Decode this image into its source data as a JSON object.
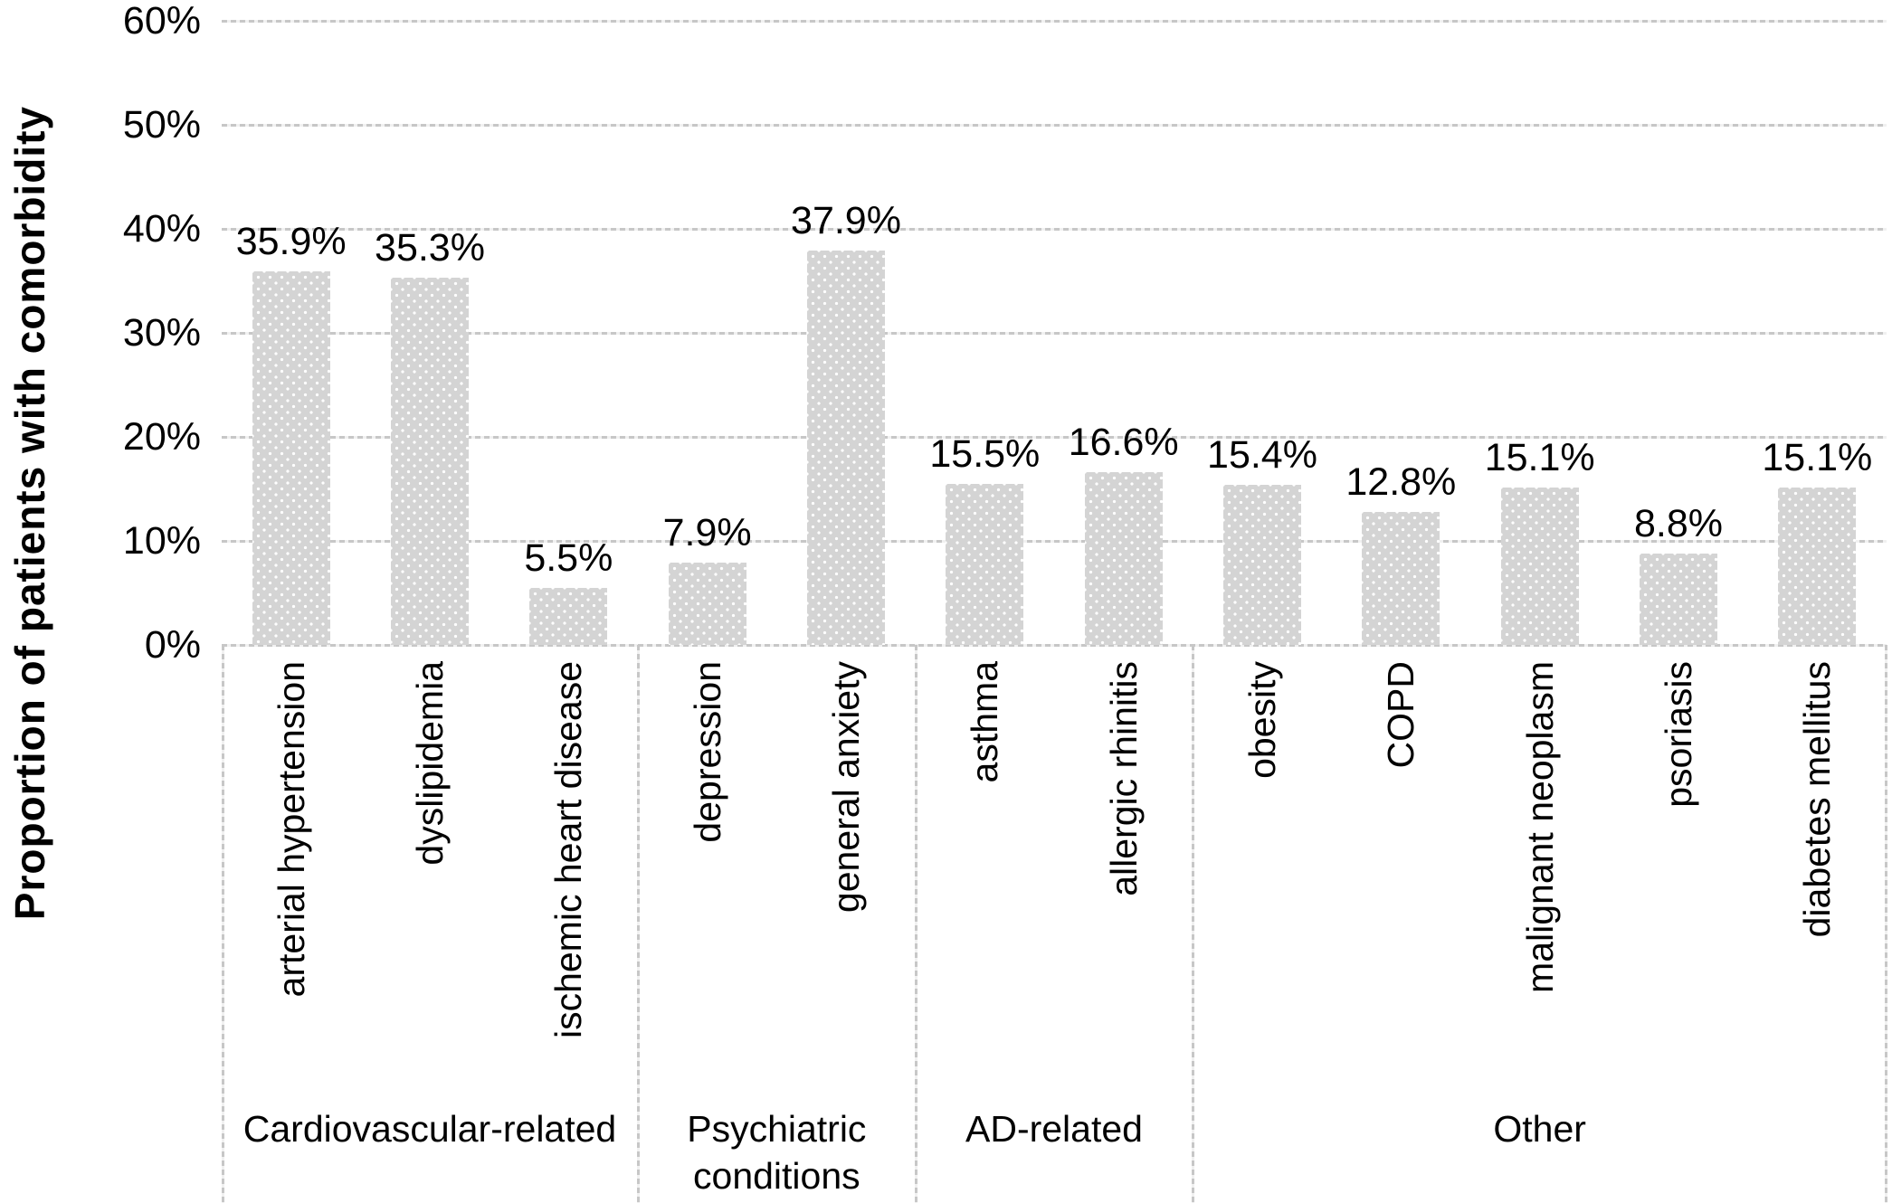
{
  "chart_data": {
    "type": "bar",
    "title": "",
    "ylabel": "Proportion of patients with comorbidity",
    "xlabel": "",
    "ylim": [
      0,
      60
    ],
    "ytick_step": 10,
    "yticks": [
      "0%",
      "10%",
      "20%",
      "30%",
      "40%",
      "50%",
      "60%"
    ],
    "grid": true,
    "legend": false,
    "bar_color": "#d4d4d4",
    "gridline_color": "#c7c7c7",
    "value_suffix": "%",
    "groups": [
      {
        "label": "Cardiovascular-related",
        "categories": [
          "arterial hypertension",
          "dyslipidemia",
          "ischemic heart disease"
        ],
        "values": [
          35.9,
          35.3,
          5.5
        ],
        "value_labels": [
          "35.9%",
          "35.3%",
          "5.5%"
        ]
      },
      {
        "label": "Psychiatric conditions",
        "categories": [
          "depression",
          "general anxiety"
        ],
        "values": [
          7.9,
          37.9
        ],
        "value_labels": [
          "7.9%",
          "37.9%"
        ]
      },
      {
        "label": "AD-related",
        "categories": [
          "asthma",
          "allergic rhinitis"
        ],
        "values": [
          15.5,
          16.6
        ],
        "value_labels": [
          "15.5%",
          "16.6%"
        ]
      },
      {
        "label": "Other",
        "categories": [
          "obesity",
          "COPD",
          "malignant neoplasm",
          "psoriasis",
          "diabetes mellitus"
        ],
        "values": [
          15.4,
          12.8,
          15.1,
          8.8,
          15.1
        ],
        "value_labels": [
          "15.4%",
          "12.8%",
          "15.1%",
          "8.8%",
          "15.1%"
        ]
      }
    ]
  }
}
